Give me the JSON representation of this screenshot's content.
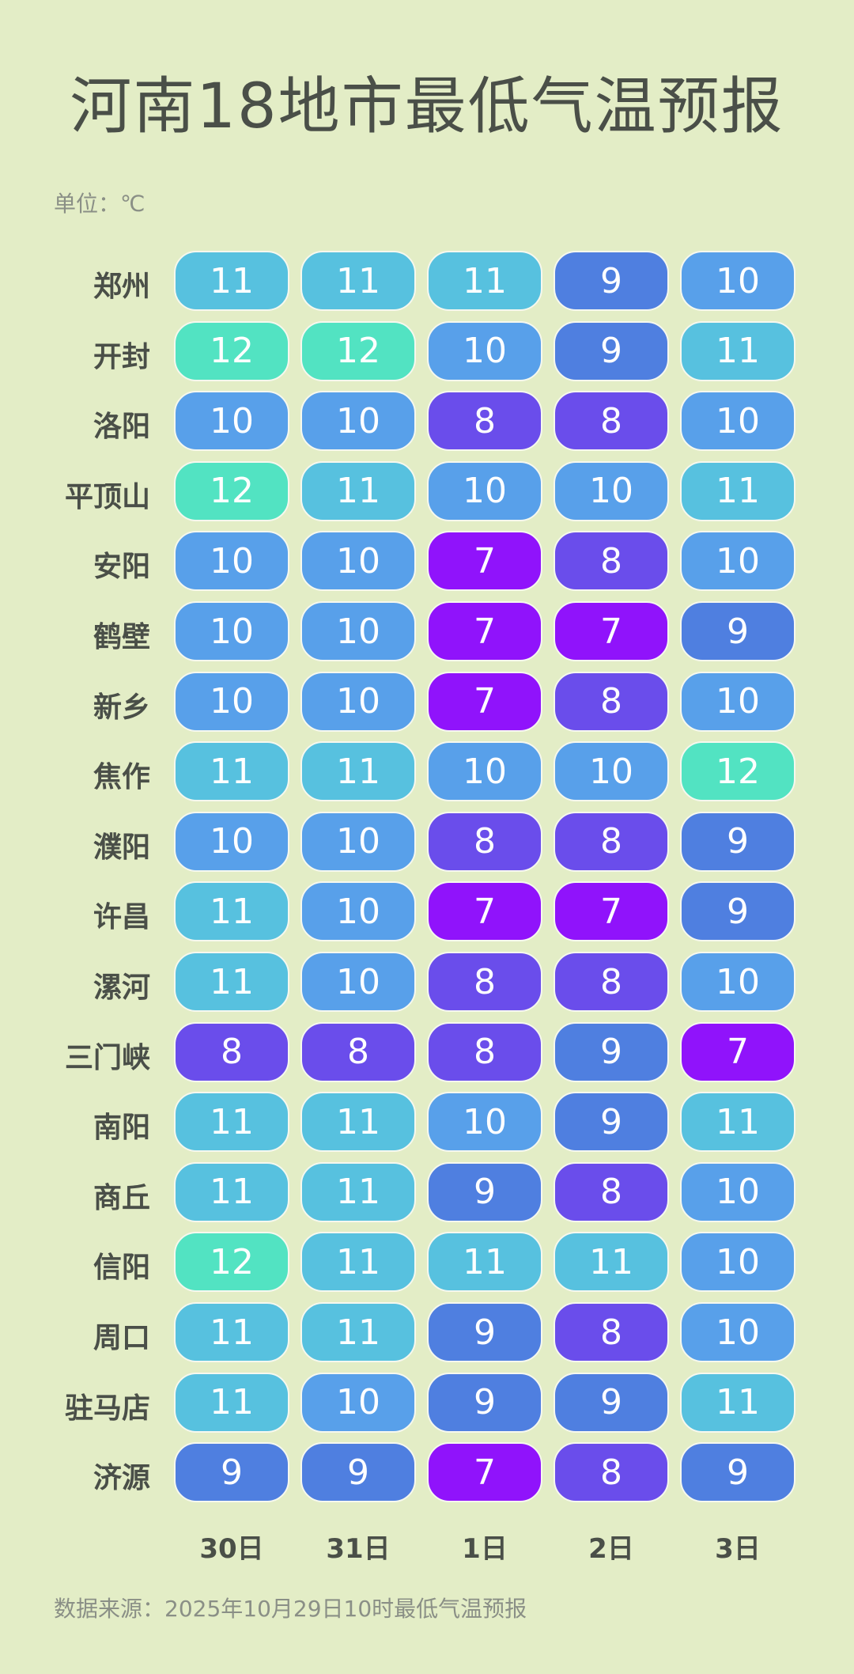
{
  "title": "河南18地市最低气温预报",
  "unit": "单位：℃",
  "source": "数据来源：2025年10月29日10时最低气温预报",
  "color_scale": {
    "12": "#52e3c2",
    "11": "#57c1df",
    "10": "#58a0ea",
    "9": "#4f7fe0",
    "8": "#6a4deb",
    "7": "#9013fb"
  },
  "chart_data": {
    "type": "heatmap",
    "title": "河南18地市最低气温预报",
    "unit": "℃",
    "columns": [
      "30日",
      "31日",
      "1日",
      "2日",
      "3日"
    ],
    "rows": [
      "郑州",
      "开封",
      "洛阳",
      "平顶山",
      "安阳",
      "鹤壁",
      "新乡",
      "焦作",
      "濮阳",
      "许昌",
      "漯河",
      "三门峡",
      "南阳",
      "商丘",
      "信阳",
      "周口",
      "驻马店",
      "济源"
    ],
    "values": [
      [
        11,
        11,
        11,
        9,
        10
      ],
      [
        12,
        12,
        10,
        9,
        11
      ],
      [
        10,
        10,
        8,
        8,
        10
      ],
      [
        12,
        11,
        10,
        10,
        11
      ],
      [
        10,
        10,
        7,
        8,
        10
      ],
      [
        10,
        10,
        7,
        7,
        9
      ],
      [
        10,
        10,
        7,
        8,
        10
      ],
      [
        11,
        11,
        10,
        10,
        12
      ],
      [
        10,
        10,
        8,
        8,
        9
      ],
      [
        11,
        10,
        7,
        7,
        9
      ],
      [
        11,
        10,
        8,
        8,
        10
      ],
      [
        8,
        8,
        8,
        9,
        7
      ],
      [
        11,
        11,
        10,
        9,
        11
      ],
      [
        11,
        11,
        9,
        8,
        10
      ],
      [
        12,
        11,
        11,
        11,
        10
      ],
      [
        11,
        11,
        9,
        8,
        10
      ],
      [
        11,
        10,
        9,
        9,
        11
      ],
      [
        9,
        9,
        7,
        8,
        9
      ]
    ]
  }
}
